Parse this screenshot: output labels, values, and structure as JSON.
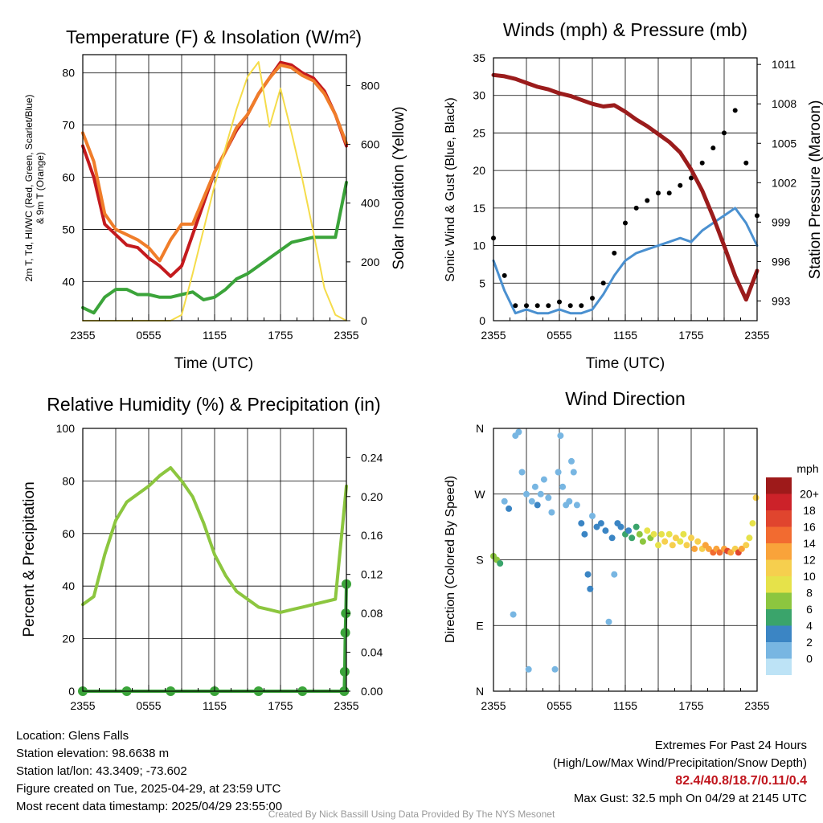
{
  "x_tick_labels": [
    "2355",
    "0555",
    "1155",
    "1755",
    "2355"
  ],
  "panels": {
    "temperature": {
      "title": "Temperature (F) & Insolation (W/m²)",
      "xlabel": "Time (UTC)",
      "ylabel_line1": "2m T, Td, HI/WC (Red, Green, Scarlet/Blue)",
      "ylabel_line2": "& 9m T (Orange)",
      "ylabel_right": "Solar Insolation (Yellow)",
      "y_ticks": [
        40,
        50,
        60,
        70,
        80
      ],
      "y_ticks_right": [
        0,
        200,
        400,
        600,
        800
      ]
    },
    "winds": {
      "title": "Winds (mph) & Pressure (mb)",
      "xlabel": "Time (UTC)",
      "ylabel": "Sonic Wind & Gust (Blue, Black)",
      "ylabel_right": "Station Pressure (Maroon)",
      "y_ticks": [
        0,
        5,
        10,
        15,
        20,
        25,
        30,
        35
      ],
      "y_ticks_right": [
        993,
        996,
        999,
        1002,
        1005,
        1008,
        1011
      ]
    },
    "humidity": {
      "title": "Relative Humidity (%) & Precipitation (in)",
      "ylabel": "Percent & Precipitation",
      "y_ticks": [
        0,
        20,
        40,
        60,
        80,
        100
      ],
      "y_ticks_right": [
        "0.00",
        "0.04",
        "0.08",
        "0.12",
        "0.16",
        "0.20",
        "0.24"
      ]
    },
    "direction": {
      "title": "Wind Direction",
      "ylabel": "Direction (Colored By Speed)",
      "y_ticks": [
        "N",
        "E",
        "S",
        "W",
        "N"
      ],
      "legend_title": "mph",
      "legend_labels": [
        "20+",
        "18",
        "16",
        "14",
        "12",
        "10",
        "8",
        "6",
        "4",
        "2",
        "0"
      ],
      "legend_colors": [
        "#9e1a1a",
        "#cc2229",
        "#e0452e",
        "#f26b30",
        "#f9a33a",
        "#f6cf4e",
        "#e6e24a",
        "#8cc63f",
        "#3aa46b",
        "#3b85c4",
        "#78b6e2",
        "#bde3f6"
      ]
    }
  },
  "chart_data": [
    {
      "type": "line",
      "title": "Temperature (F) & Insolation (W/m²)",
      "xlabel": "Time (UTC)",
      "ylabel": "2m T, Td, HI/WC (Red, Green, Scarlet/Blue) & 9m T (Orange)",
      "ylabel_right": "Solar Insolation (Yellow)",
      "x_hours": [
        0,
        6,
        12,
        18,
        24
      ],
      "x_tick_labels": [
        "2355",
        "0555",
        "1155",
        "1755",
        "2355"
      ],
      "ylim": [
        32.5,
        83.5
      ],
      "ylim_right": [
        0,
        905
      ],
      "series": [
        {
          "name": "2m T",
          "color": "#c41a1e",
          "axis": "left",
          "x": [
            0,
            1,
            2,
            3,
            4,
            5,
            6,
            7,
            8,
            9,
            10,
            11,
            12,
            13,
            14,
            15,
            16,
            17,
            18,
            19,
            20,
            21,
            22,
            23,
            24
          ],
          "y": [
            66,
            60,
            51,
            49,
            47,
            46.5,
            44.5,
            43,
            41,
            43,
            49,
            55,
            61,
            65,
            69,
            72,
            76,
            79,
            82,
            81.5,
            80,
            79,
            76.5,
            72,
            66
          ]
        },
        {
          "name": "9m T",
          "color": "#f07d2a",
          "axis": "left",
          "x": [
            0,
            1,
            2,
            3,
            4,
            5,
            6,
            7,
            8,
            9,
            10,
            11,
            12,
            13,
            14,
            15,
            16,
            17,
            18,
            19,
            20,
            21,
            22,
            23,
            24
          ],
          "y": [
            68.5,
            63,
            53,
            50,
            49,
            48,
            46.5,
            44,
            48,
            51,
            51,
            56,
            61,
            65,
            69.5,
            72,
            76,
            79,
            81.5,
            81,
            79.5,
            78.5,
            76,
            72,
            66.5
          ]
        },
        {
          "name": "Td",
          "color": "#3ba43a",
          "axis": "left",
          "x": [
            0,
            1,
            2,
            3,
            4,
            5,
            6,
            7,
            8,
            9,
            10,
            11,
            12,
            13,
            14,
            15,
            16,
            17,
            18,
            19,
            20,
            21,
            22,
            23,
            24
          ],
          "y": [
            35,
            34,
            37,
            38.5,
            38.5,
            37.5,
            37.5,
            37,
            37,
            37.5,
            38,
            36.5,
            37,
            38.5,
            40.5,
            41.5,
            43,
            44.5,
            46,
            47.5,
            48,
            48.5,
            48.5,
            48.5,
            59
          ]
        },
        {
          "name": "Solar Insolation",
          "color": "#f5dc4a",
          "axis": "right",
          "x": [
            0,
            1,
            2,
            3,
            4,
            5,
            6,
            7,
            8,
            9,
            10,
            11,
            12,
            13,
            14,
            15,
            16,
            17,
            18,
            19,
            20,
            21,
            22,
            23,
            24
          ],
          "y": [
            0,
            0,
            0,
            0,
            0,
            0,
            0,
            0,
            0,
            20,
            160,
            310,
            460,
            590,
            720,
            830,
            880,
            660,
            790,
            640,
            480,
            300,
            110,
            20,
            0
          ]
        }
      ]
    },
    {
      "type": "line",
      "title": "Winds (mph) & Pressure (mb)",
      "xlabel": "Time (UTC)",
      "ylabel": "Sonic Wind & Gust (Blue, Black)",
      "ylabel_right": "Station Pressure (Maroon)",
      "x_hours": [
        0,
        6,
        12,
        18,
        24
      ],
      "x_tick_labels": [
        "2355",
        "0555",
        "1155",
        "1755",
        "2355"
      ],
      "ylim": [
        0,
        35
      ],
      "ylim_right": [
        991.5,
        1011.5
      ],
      "series": [
        {
          "name": "Sonic Wind",
          "color": "#4a90d0",
          "axis": "left",
          "x": [
            0,
            1,
            2,
            3,
            4,
            5,
            6,
            7,
            8,
            9,
            10,
            11,
            12,
            13,
            14,
            15,
            16,
            17,
            18,
            19,
            20,
            21,
            22,
            23,
            24
          ],
          "y": [
            8,
            4,
            1,
            1.5,
            1,
            1,
            1.5,
            1,
            1,
            1.5,
            3.5,
            6,
            8,
            9,
            9.5,
            10,
            10.5,
            11,
            10.5,
            12,
            13,
            14,
            15,
            13,
            10
          ]
        },
        {
          "name": "Gust",
          "color": "#000000",
          "axis": "left",
          "x": [
            0,
            1,
            2,
            3,
            4,
            5,
            6,
            7,
            8,
            9,
            10,
            11,
            12,
            13,
            14,
            15,
            16,
            17,
            18,
            19,
            20,
            21,
            22,
            23,
            24
          ],
          "y": [
            11,
            6,
            2,
            2,
            2,
            2,
            2.5,
            2,
            2,
            3,
            5,
            9,
            13,
            15,
            16,
            17,
            17,
            18,
            19,
            21,
            23,
            25,
            28,
            21,
            14
          ]
        },
        {
          "name": "Station Pressure",
          "color": "#9b1c1c",
          "axis": "right",
          "x": [
            0,
            1,
            2,
            3,
            4,
            5,
            6,
            7,
            8,
            9,
            10,
            11,
            12,
            13,
            14,
            15,
            16,
            17,
            18,
            19,
            20,
            21,
            22,
            23,
            24
          ],
          "y": [
            1010.2,
            1010.1,
            1009.9,
            1009.6,
            1009.3,
            1009.1,
            1008.8,
            1008.6,
            1008.3,
            1008.0,
            1007.8,
            1007.9,
            1007.4,
            1006.8,
            1006.3,
            1005.7,
            1005.1,
            1004.3,
            1003.0,
            1001.4,
            999.4,
            997.2,
            994.9,
            993.1,
            995.3
          ]
        }
      ]
    },
    {
      "type": "line",
      "title": "Relative Humidity (%) & Precipitation (in)",
      "ylabel": "Percent & Precipitation",
      "x_hours": [
        0,
        6,
        12,
        18,
        24
      ],
      "x_tick_labels": [
        "2355",
        "0555",
        "1155",
        "1755",
        "2355"
      ],
      "ylim": [
        0,
        100
      ],
      "ylim_right": [
        0,
        0.27
      ],
      "series": [
        {
          "name": "Relative Humidity",
          "color": "#8cc63f",
          "axis": "left",
          "x": [
            0,
            1,
            2,
            3,
            4,
            5,
            6,
            7,
            8,
            9,
            10,
            11,
            12,
            13,
            14,
            15,
            16,
            17,
            18,
            19,
            20,
            21,
            22,
            23,
            24
          ],
          "y": [
            33,
            36,
            52,
            65,
            72,
            75,
            78,
            82,
            85,
            80,
            74,
            64,
            52,
            44,
            38,
            35,
            32,
            31,
            30,
            31,
            32,
            33,
            34,
            35,
            78
          ]
        },
        {
          "name": "Precipitation",
          "color": "#3ba43a",
          "axis": "right",
          "x": [
            0,
            4,
            8,
            12,
            16,
            20,
            23.8,
            23.85,
            23.9,
            23.95,
            24
          ],
          "y": [
            0,
            0,
            0,
            0,
            0,
            0,
            0.0,
            0.02,
            0.06,
            0.08,
            0.11
          ]
        }
      ]
    },
    {
      "type": "scatter",
      "title": "Wind Direction",
      "ylabel": "Direction (Colored By Speed)",
      "x_hours": [
        0,
        6,
        12,
        18,
        24
      ],
      "x_tick_labels": [
        "2355",
        "0555",
        "1155",
        "1755",
        "2355"
      ],
      "y_tick_labels": [
        "N",
        "E",
        "S",
        "W",
        "N"
      ],
      "ylim": [
        0,
        360
      ],
      "legend_title": "mph",
      "points": [
        {
          "x": 0.0,
          "dir": 185,
          "speed": 7
        },
        {
          "x": 0.3,
          "dir": 180,
          "speed": 7
        },
        {
          "x": 0.6,
          "dir": 175,
          "speed": 6
        },
        {
          "x": 1.0,
          "dir": 260,
          "speed": 1
        },
        {
          "x": 1.4,
          "dir": 250,
          "speed": 3
        },
        {
          "x": 1.8,
          "dir": 105,
          "speed": 1
        },
        {
          "x": 2.0,
          "dir": 350,
          "speed": 1
        },
        {
          "x": 2.3,
          "dir": 355,
          "speed": 1
        },
        {
          "x": 2.6,
          "dir": 300,
          "speed": 1
        },
        {
          "x": 3.0,
          "dir": 270,
          "speed": 2
        },
        {
          "x": 3.2,
          "dir": 30,
          "speed": 1
        },
        {
          "x": 3.5,
          "dir": 260,
          "speed": 2
        },
        {
          "x": 3.8,
          "dir": 280,
          "speed": 1
        },
        {
          "x": 4.0,
          "dir": 255,
          "speed": 3
        },
        {
          "x": 4.3,
          "dir": 270,
          "speed": 2
        },
        {
          "x": 4.6,
          "dir": 290,
          "speed": 1
        },
        {
          "x": 5.0,
          "dir": 265,
          "speed": 2
        },
        {
          "x": 5.3,
          "dir": 245,
          "speed": 2
        },
        {
          "x": 5.6,
          "dir": 30,
          "speed": 1
        },
        {
          "x": 5.9,
          "dir": 300,
          "speed": 1
        },
        {
          "x": 6.1,
          "dir": 350,
          "speed": 1
        },
        {
          "x": 6.3,
          "dir": 280,
          "speed": 1
        },
        {
          "x": 6.6,
          "dir": 255,
          "speed": 2
        },
        {
          "x": 6.9,
          "dir": 260,
          "speed": 2
        },
        {
          "x": 7.1,
          "dir": 315,
          "speed": 1
        },
        {
          "x": 7.3,
          "dir": 300,
          "speed": 2
        },
        {
          "x": 7.6,
          "dir": 255,
          "speed": 2
        },
        {
          "x": 8.0,
          "dir": 230,
          "speed": 3
        },
        {
          "x": 8.3,
          "dir": 215,
          "speed": 4
        },
        {
          "x": 8.6,
          "dir": 160,
          "speed": 3
        },
        {
          "x": 8.8,
          "dir": 140,
          "speed": 3
        },
        {
          "x": 9.0,
          "dir": 240,
          "speed": 2
        },
        {
          "x": 9.4,
          "dir": 225,
          "speed": 3
        },
        {
          "x": 9.8,
          "dir": 230,
          "speed": 3
        },
        {
          "x": 10.2,
          "dir": 220,
          "speed": 4
        },
        {
          "x": 10.5,
          "dir": 95,
          "speed": 2
        },
        {
          "x": 10.8,
          "dir": 210,
          "speed": 4
        },
        {
          "x": 11.0,
          "dir": 160,
          "speed": 2
        },
        {
          "x": 11.3,
          "dir": 230,
          "speed": 4
        },
        {
          "x": 11.6,
          "dir": 225,
          "speed": 4
        },
        {
          "x": 12.0,
          "dir": 215,
          "speed": 5
        },
        {
          "x": 12.3,
          "dir": 220,
          "speed": 4
        },
        {
          "x": 12.6,
          "dir": 210,
          "speed": 6
        },
        {
          "x": 13.0,
          "dir": 225,
          "speed": 6
        },
        {
          "x": 13.3,
          "dir": 215,
          "speed": 8
        },
        {
          "x": 13.6,
          "dir": 205,
          "speed": 7
        },
        {
          "x": 14.0,
          "dir": 220,
          "speed": 9
        },
        {
          "x": 14.3,
          "dir": 210,
          "speed": 8
        },
        {
          "x": 14.6,
          "dir": 215,
          "speed": 10
        },
        {
          "x": 15.0,
          "dir": 200,
          "speed": 9
        },
        {
          "x": 15.3,
          "dir": 215,
          "speed": 10
        },
        {
          "x": 15.6,
          "dir": 205,
          "speed": 11
        },
        {
          "x": 16.0,
          "dir": 215,
          "speed": 10
        },
        {
          "x": 16.3,
          "dir": 200,
          "speed": 12
        },
        {
          "x": 16.6,
          "dir": 210,
          "speed": 11
        },
        {
          "x": 17.0,
          "dir": 205,
          "speed": 10
        },
        {
          "x": 17.3,
          "dir": 215,
          "speed": 9
        },
        {
          "x": 17.6,
          "dir": 200,
          "speed": 12
        },
        {
          "x": 18.0,
          "dir": 210,
          "speed": 11
        },
        {
          "x": 18.3,
          "dir": 195,
          "speed": 13
        },
        {
          "x": 18.6,
          "dir": 205,
          "speed": 12
        },
        {
          "x": 19.0,
          "dir": 195,
          "speed": 12
        },
        {
          "x": 19.3,
          "dir": 200,
          "speed": 13
        },
        {
          "x": 19.6,
          "dir": 195,
          "speed": 14
        },
        {
          "x": 20.0,
          "dir": 190,
          "speed": 15
        },
        {
          "x": 20.3,
          "dir": 195,
          "speed": 13
        },
        {
          "x": 20.6,
          "dir": 190,
          "speed": 16
        },
        {
          "x": 21.0,
          "dir": 195,
          "speed": 14
        },
        {
          "x": 21.3,
          "dir": 192,
          "speed": 17
        },
        {
          "x": 21.6,
          "dir": 190,
          "speed": 14
        },
        {
          "x": 22.0,
          "dir": 195,
          "speed": 12
        },
        {
          "x": 22.3,
          "dir": 190,
          "speed": 18
        },
        {
          "x": 22.6,
          "dir": 195,
          "speed": 13
        },
        {
          "x": 23.0,
          "dir": 200,
          "speed": 12
        },
        {
          "x": 23.3,
          "dir": 210,
          "speed": 10
        },
        {
          "x": 23.6,
          "dir": 230,
          "speed": 9
        },
        {
          "x": 23.9,
          "dir": 265,
          "speed": 11
        }
      ]
    }
  ],
  "footer": {
    "location": "Location: Glens Falls",
    "elevation": "Station elevation: 98.6638 m",
    "latlon": "Station lat/lon: 43.3409; -73.602",
    "created": "Figure created on Tue, 2025-04-29, at 23:59 UTC",
    "recent": "Most recent data timestamp: 2025/04/29 23:55:00",
    "extremes_title": "Extremes For Past 24 Hours",
    "extremes_subtitle": "(High/Low/Max Wind/Precipitation/Snow Depth)",
    "extremes_values": "82.4/40.8/18.7/0.11/0.4",
    "max_gust": "Max Gust: 32.5 mph On 04/29 at 2145 UTC",
    "credit": "Created By Nick Bassill Using Data Provided By The NYS Mesonet"
  }
}
